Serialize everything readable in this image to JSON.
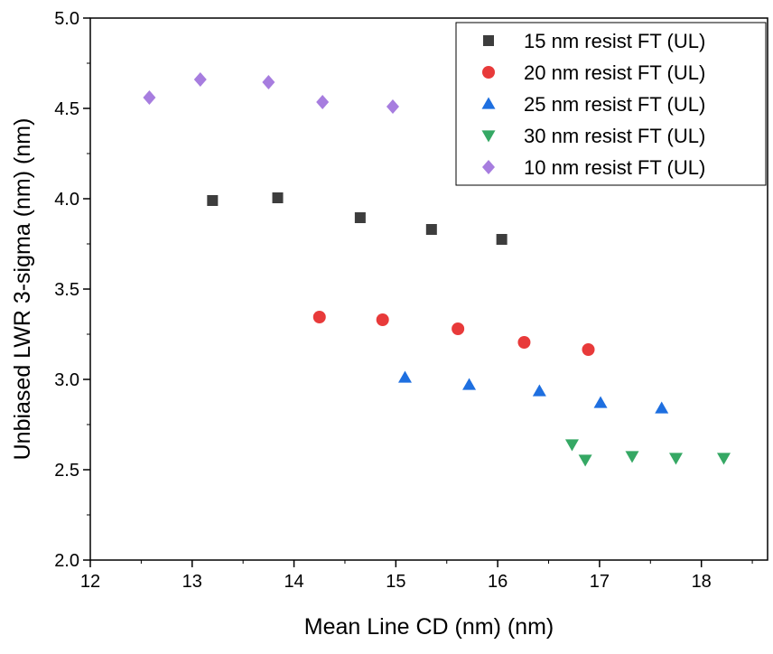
{
  "chart_data": {
    "type": "scatter",
    "title": "",
    "xlabel": "Mean Line CD (nm) (nm)",
    "ylabel": "Unbiased LWR 3-sigma (nm) (nm)",
    "xlim": [
      12,
      18.65
    ],
    "ylim": [
      2.0,
      5.0
    ],
    "xticks": [
      "12",
      "13",
      "14",
      "15",
      "16",
      "17",
      "18"
    ],
    "yticks": [
      "2.0",
      "2.5",
      "3.0",
      "3.5",
      "4.0",
      "4.5",
      "5.0"
    ],
    "grid": false,
    "legend_position": "top-right",
    "series": [
      {
        "name": "15 nm resist FT (UL)",
        "marker": "square",
        "color": "#3d3d3d",
        "x": [
          13.2,
          13.84,
          14.65,
          15.35,
          16.04
        ],
        "y": [
          3.99,
          4.005,
          3.895,
          3.83,
          3.775
        ]
      },
      {
        "name": "20 nm resist FT (UL)",
        "marker": "circle",
        "color": "#e83a3a",
        "x": [
          14.25,
          14.87,
          15.61,
          16.26,
          16.89
        ],
        "y": [
          3.345,
          3.33,
          3.28,
          3.205,
          3.165
        ]
      },
      {
        "name": "25 nm resist FT (UL)",
        "marker": "triangle-up",
        "color": "#1e6fe0",
        "x": [
          15.09,
          15.72,
          16.41,
          17.01,
          17.61
        ],
        "y": [
          3.01,
          2.97,
          2.935,
          2.87,
          2.84
        ]
      },
      {
        "name": "30 nm resist FT (UL)",
        "marker": "triangle-down",
        "color": "#35a864",
        "x": [
          16.73,
          16.86,
          17.32,
          17.75,
          18.22
        ],
        "y": [
          2.64,
          2.555,
          2.575,
          2.565,
          2.565
        ]
      },
      {
        "name": "10 nm resist FT (UL)",
        "marker": "diamond",
        "color": "#a77ddf",
        "x": [
          12.58,
          13.08,
          13.75,
          14.28,
          14.97
        ],
        "y": [
          4.56,
          4.66,
          4.645,
          4.535,
          4.51
        ]
      }
    ]
  }
}
